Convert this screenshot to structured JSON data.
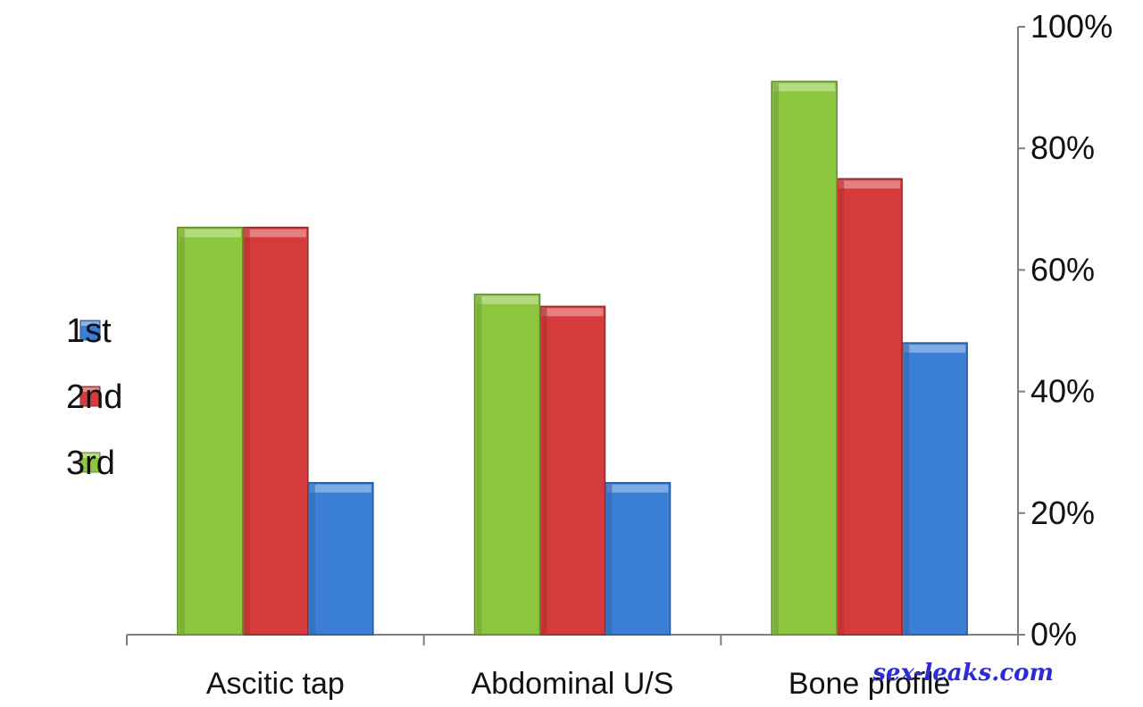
{
  "chart_data": {
    "type": "bar",
    "mirrored": true,
    "categories": [
      "Ascitic tap",
      "Abdominal U/S",
      "Bone profile"
    ],
    "series": [
      {
        "name": "1st",
        "color": "#3a7fd5",
        "values": [
          25,
          25,
          48
        ]
      },
      {
        "name": "2nd",
        "color": "#d63b3b",
        "values": [
          67,
          54,
          75
        ]
      },
      {
        "name": "3rd",
        "color": "#8cc63f",
        "values": [
          67,
          56,
          91
        ]
      }
    ],
    "yticks": [
      "0%",
      "20%",
      "40%",
      "60%",
      "80%",
      "100%"
    ],
    "ylim": [
      0,
      100
    ],
    "y_axis_side": "right",
    "legend_placement": "left",
    "grid": false
  },
  "watermark": "sex-leaks.com"
}
